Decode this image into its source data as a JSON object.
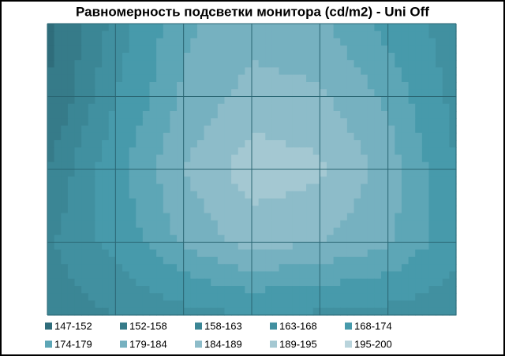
{
  "chart_data": {
    "type": "contour",
    "title": "Равномерность  подсветки монитора (cd/m2) - Uni Off",
    "z": [
      [
        150,
        165,
        178,
        182,
        180,
        172,
        165
      ],
      [
        152,
        168,
        180,
        186,
        185,
        178,
        166
      ],
      [
        158,
        172,
        184,
        192,
        190,
        182,
        168
      ],
      [
        162,
        170,
        180,
        186,
        184,
        180,
        170
      ],
      [
        160,
        163,
        166,
        168,
        167,
        166,
        164
      ]
    ],
    "bands": [
      {
        "label": "147-152",
        "min": 147,
        "max": 152,
        "color": "#2f6d7b"
      },
      {
        "label": "152-158",
        "min": 152,
        "max": 158,
        "color": "#367b89"
      },
      {
        "label": "158-163",
        "min": 158,
        "max": 163,
        "color": "#3b8695"
      },
      {
        "label": "163-168",
        "min": 163,
        "max": 168,
        "color": "#4190a0"
      },
      {
        "label": "168-174",
        "min": 168,
        "max": 174,
        "color": "#479aab"
      },
      {
        "label": "174-179",
        "min": 174,
        "max": 179,
        "color": "#5da6b6"
      },
      {
        "label": "179-184",
        "min": 179,
        "max": 184,
        "color": "#76b1c0"
      },
      {
        "label": "184-189",
        "min": 184,
        "max": 189,
        "color": "#8dbcc9"
      },
      {
        "label": "189-195",
        "min": 189,
        "max": 195,
        "color": "#a4c8d2"
      },
      {
        "label": "195-200",
        "min": 195,
        "max": 200,
        "color": "#b9d4dc"
      }
    ]
  }
}
